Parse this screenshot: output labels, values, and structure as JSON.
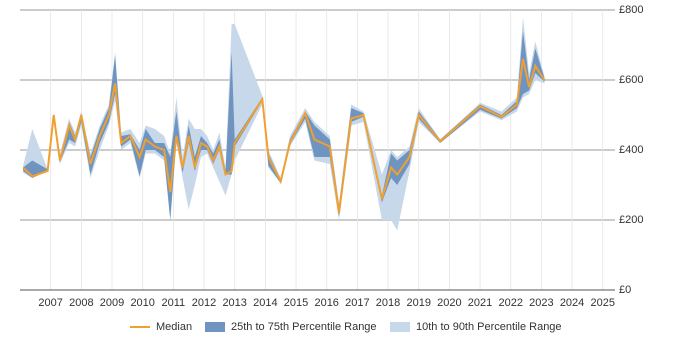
{
  "chart_data": {
    "type": "range-line",
    "x": [
      2006.1,
      2006.4,
      2006.9,
      2007.1,
      2007.3,
      2007.6,
      2007.8,
      2008.0,
      2008.3,
      2008.6,
      2008.9,
      2009.1,
      2009.3,
      2009.6,
      2009.9,
      2010.1,
      2010.4,
      2010.7,
      2010.9,
      2011.1,
      2011.3,
      2011.5,
      2011.7,
      2011.9,
      2012.1,
      2012.3,
      2012.5,
      2012.7,
      2012.9,
      2013.0,
      2013.9,
      2014.1,
      2014.5,
      2014.8,
      2015.3,
      2015.6,
      2016.1,
      2016.4,
      2016.8,
      2017.2,
      2017.8,
      2018.1,
      2018.3,
      2018.7,
      2019.0,
      2019.7,
      2021.0,
      2021.7,
      2022.2,
      2022.4,
      2022.6,
      2022.8,
      2023.1
    ],
    "series": [
      {
        "name": "Median",
        "color": "#f0a030",
        "values": [
          350,
          325,
          340,
          500,
          370,
          470,
          430,
          500,
          360,
          440,
          500,
          590,
          420,
          440,
          380,
          430,
          410,
          400,
          280,
          440,
          350,
          440,
          350,
          420,
          410,
          370,
          410,
          330,
          340,
          420,
          545,
          380,
          310,
          420,
          505,
          430,
          410,
          220,
          490,
          500,
          260,
          350,
          330,
          380,
          500,
          425,
          525,
          495,
          530,
          660,
          580,
          640,
          600
        ]
      },
      {
        "name": "25th to 75th Percentile Range",
        "color": "#6e94bf",
        "low": [
          340,
          320,
          340,
          495,
          365,
          430,
          420,
          480,
          330,
          420,
          480,
          560,
          410,
          430,
          325,
          400,
          400,
          380,
          200,
          430,
          335,
          420,
          340,
          400,
          400,
          360,
          400,
          330,
          330,
          410,
          540,
          355,
          305,
          415,
          490,
          380,
          380,
          210,
          480,
          495,
          250,
          320,
          300,
          360,
          490,
          420,
          515,
          490,
          520,
          560,
          570,
          620,
          595
        ],
        "high": [
          350,
          370,
          345,
          500,
          380,
          480,
          440,
          505,
          380,
          460,
          520,
          670,
          440,
          445,
          400,
          460,
          420,
          420,
          380,
          510,
          360,
          470,
          380,
          440,
          420,
          390,
          430,
          340,
          680,
          430,
          550,
          390,
          315,
          430,
          510,
          470,
          430,
          240,
          520,
          505,
          270,
          390,
          370,
          400,
          510,
          430,
          530,
          500,
          540,
          740,
          600,
          690,
          605
        ]
      },
      {
        "name": "10th to 90th Percentile Range",
        "color": "#c7d8eb",
        "low": [
          335,
          320,
          340,
          490,
          360,
          420,
          410,
          470,
          320,
          400,
          470,
          540,
          400,
          420,
          320,
          390,
          390,
          370,
          200,
          420,
          320,
          230,
          300,
          380,
          390,
          350,
          310,
          270,
          330,
          370,
          530,
          350,
          305,
          410,
          480,
          370,
          360,
          200,
          470,
          480,
          200,
          200,
          170,
          340,
          480,
          420,
          510,
          485,
          510,
          550,
          560,
          600,
          590
        ],
        "high": [
          355,
          460,
          345,
          505,
          390,
          490,
          450,
          510,
          390,
          470,
          530,
          680,
          450,
          460,
          420,
          470,
          460,
          440,
          390,
          550,
          380,
          490,
          460,
          460,
          440,
          400,
          450,
          350,
          760,
          760,
          555,
          400,
          320,
          440,
          520,
          480,
          440,
          250,
          530,
          510,
          330,
          400,
          380,
          410,
          520,
          430,
          535,
          510,
          550,
          780,
          620,
          710,
          610
        ]
      }
    ],
    "xlim": [
      2006,
      2025.4
    ],
    "xticks": [
      2007,
      2008,
      2009,
      2010,
      2011,
      2012,
      2013,
      2014,
      2015,
      2016,
      2017,
      2018,
      2019,
      2020,
      2021,
      2022,
      2023,
      2024,
      2025
    ],
    "ylim": [
      0,
      800
    ],
    "yticks": [
      {
        "value": 0,
        "label": "£0"
      },
      {
        "value": 200,
        "label": "£200"
      },
      {
        "value": 400,
        "label": "£400"
      },
      {
        "value": 600,
        "label": "£600"
      },
      {
        "value": 800,
        "label": "£800"
      }
    ],
    "grid": true
  }
}
